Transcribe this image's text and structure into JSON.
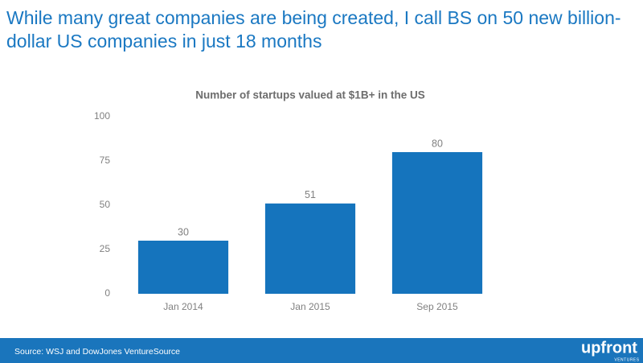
{
  "headline": [
    "While many great companies are being created, I call BS on 50 new billion-",
    "dollar US companies in just 18 months"
  ],
  "chart_data": {
    "type": "bar",
    "title": "Number of startups valued at $1B+ in the US",
    "categories": [
      "Jan 2014",
      "Jan 2015",
      "Sep 2015"
    ],
    "values": [
      30,
      51,
      80
    ],
    "color": "#1574bd",
    "ylim": [
      0,
      100
    ],
    "yticks": [
      0,
      25,
      50,
      75,
      100
    ],
    "grid": false
  },
  "footer": {
    "source": "Source: WSJ and DowJones VentureSource",
    "logo": "upfront",
    "logo_sub": "VENTURES"
  }
}
